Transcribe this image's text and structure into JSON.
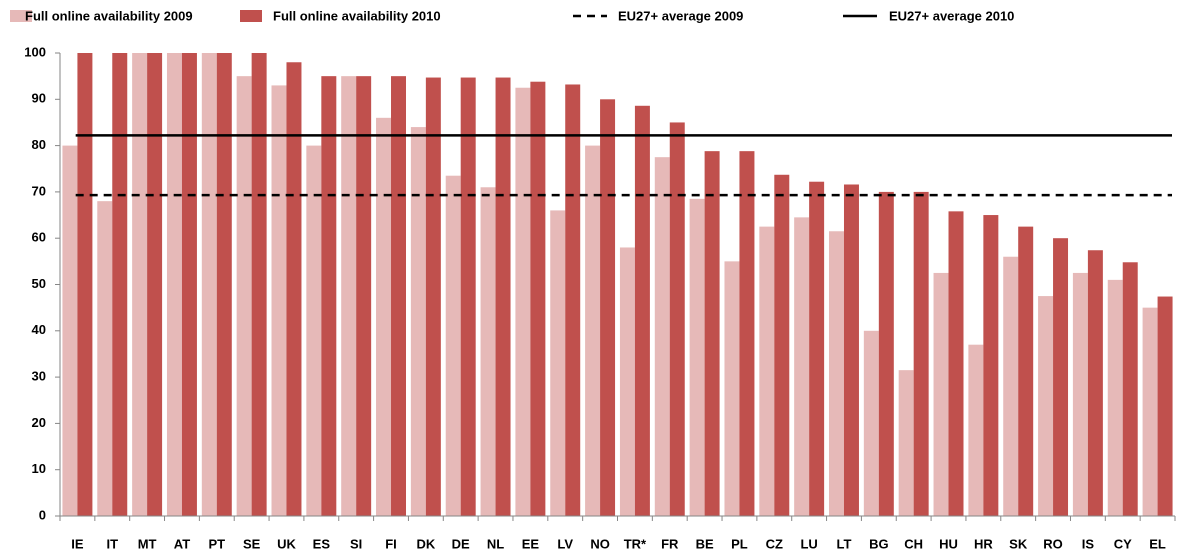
{
  "chart_data": {
    "type": "bar",
    "categories": [
      "IE",
      "IT",
      "MT",
      "AT",
      "PT",
      "SE",
      "UK",
      "ES",
      "SI",
      "FI",
      "DK",
      "DE",
      "NL",
      "EE",
      "LV",
      "NO",
      "TR*",
      "FR",
      "BE",
      "PL",
      "CZ",
      "LU",
      "LT",
      "BG",
      "CH",
      "HU",
      "HR",
      "SK",
      "RO",
      "IS",
      "CY",
      "EL"
    ],
    "series": [
      {
        "name": "Full online availability 2009",
        "color": "#e6b9b8",
        "values": [
          80,
          68,
          100,
          100,
          100,
          95,
          93,
          80,
          95,
          86,
          84,
          73.5,
          71,
          92.5,
          66,
          80,
          58,
          77.5,
          68.5,
          55,
          62.5,
          64.5,
          61.5,
          40,
          31.5,
          52.5,
          37,
          56,
          47.5,
          52.5,
          51,
          45
        ]
      },
      {
        "name": "Full online availability 2010",
        "color": "#c0504d",
        "values": [
          100,
          100,
          100,
          100,
          100,
          100,
          98,
          95,
          95,
          95,
          94.7,
          94.7,
          94.7,
          93.8,
          93.2,
          90,
          88.6,
          85,
          78.8,
          78.8,
          73.7,
          72.2,
          71.6,
          70,
          70,
          65.8,
          65,
          62.5,
          60,
          57.4,
          54.8,
          47.4
        ]
      }
    ],
    "reference_lines": [
      {
        "name": "EU27+ average 2009",
        "value": 69.3,
        "color": "#000000",
        "style": "dashed"
      },
      {
        "name": "EU27+ average 2010",
        "value": 82.2,
        "color": "#000000",
        "style": "solid"
      }
    ],
    "ylim": [
      0,
      100
    ],
    "yticks": [
      0,
      10,
      20,
      30,
      40,
      50,
      60,
      70,
      80,
      90,
      100
    ],
    "grid": false,
    "legend": "top"
  }
}
